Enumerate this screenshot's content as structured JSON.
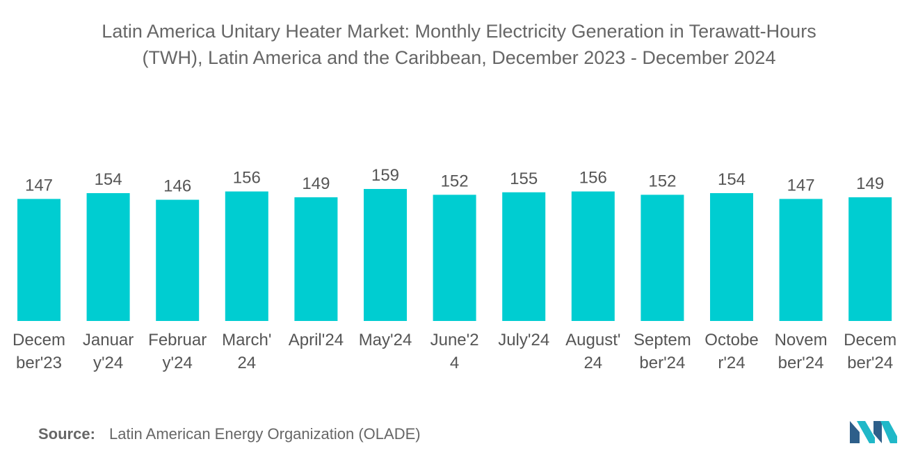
{
  "title_lines": [
    "Latin America Unitary Heater Market: Monthly Electricity Generation in Terawatt-Hours",
    "(TWH), Latin America and the Caribbean, December 2023 - December 2024"
  ],
  "source": {
    "label": "Source:",
    "text": "Latin American Energy Organization (OLADE)"
  },
  "colors": {
    "bar": "#00CDD1",
    "text": "#555555",
    "logo_dark": "#2E5F8A",
    "logo_light": "#20B8C8"
  },
  "logo": {
    "icon": "mordor-intelligence-logo-icon"
  },
  "chart_data": {
    "type": "bar",
    "title": "Latin America Unitary Heater Market: Monthly Electricity Generation in Terawatt-Hours (TWH), Latin America and the Caribbean, December 2023 - December 2024",
    "categories": [
      "December'23",
      "January'24",
      "February'24",
      "March'24",
      "April'24",
      "May'24",
      "June'24",
      "July'24",
      "August'24",
      "September'24",
      "October'24",
      "November'24",
      "December'24"
    ],
    "category_label_lines": [
      [
        "Decem",
        "ber'23"
      ],
      [
        "Januar",
        "y'24"
      ],
      [
        "Februar",
        "y'24"
      ],
      [
        "March'",
        "24"
      ],
      [
        "April'24"
      ],
      [
        "May'24"
      ],
      [
        "June'2",
        "4"
      ],
      [
        "July'24"
      ],
      [
        "August'",
        "24"
      ],
      [
        "Septem",
        "ber'24"
      ],
      [
        "Octobe",
        "r'24"
      ],
      [
        "Novem",
        "ber'24"
      ],
      [
        "Decem",
        "ber'24"
      ]
    ],
    "values": [
      147,
      154,
      146,
      156,
      149,
      159,
      152,
      155,
      156,
      152,
      154,
      147,
      149
    ],
    "value_labels": [
      "147",
      "154",
      "146",
      "156",
      "149",
      "159",
      "152",
      "155",
      "156",
      "152",
      "154",
      "147",
      "149"
    ],
    "xlabel": "",
    "ylabel": "",
    "ylim": [
      0,
      159
    ],
    "grid": false,
    "legend": "none"
  }
}
